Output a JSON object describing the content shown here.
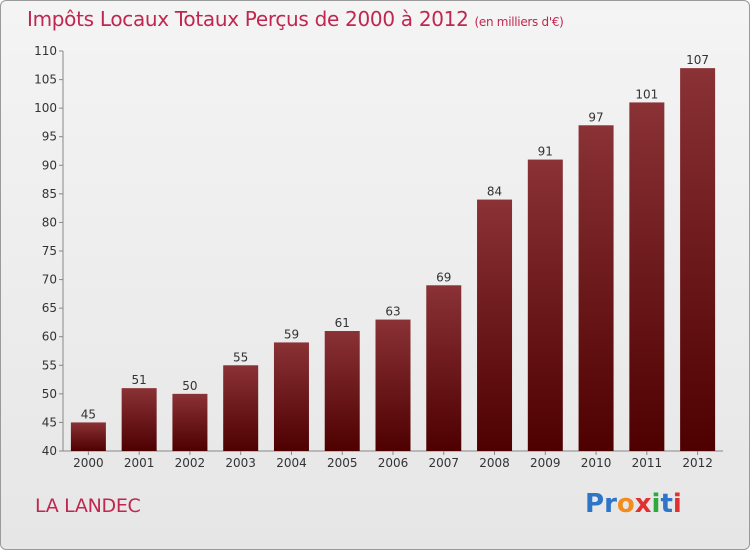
{
  "title": "Impôts Locaux Totaux Perçus de 2000 à 2012",
  "unit": "(en milliers d'€)",
  "location": "LA LANDEC",
  "logo": {
    "letters": [
      "P",
      "r",
      "o",
      "x",
      "i",
      "t",
      "i"
    ],
    "colors": [
      "#2e74c9",
      "#2e74c9",
      "#f28c1e",
      "#e03030",
      "#2eaa3c",
      "#2e74c9",
      "#e03030"
    ]
  },
  "chart_data": {
    "type": "bar",
    "categories": [
      "2000",
      "2001",
      "2002",
      "2003",
      "2004",
      "2005",
      "2006",
      "2007",
      "2008",
      "2009",
      "2010",
      "2011",
      "2012"
    ],
    "values": [
      45,
      51,
      50,
      55,
      59,
      61,
      63,
      69,
      84,
      91,
      97,
      101,
      107
    ],
    "ylim": [
      40,
      110
    ],
    "yticks": [
      40,
      45,
      50,
      55,
      60,
      65,
      70,
      75,
      80,
      85,
      90,
      95,
      100,
      105,
      110
    ],
    "grid": false,
    "data_labels": true,
    "bar_color_top": "#8a3236",
    "bar_color_bottom": "#4e0000"
  }
}
